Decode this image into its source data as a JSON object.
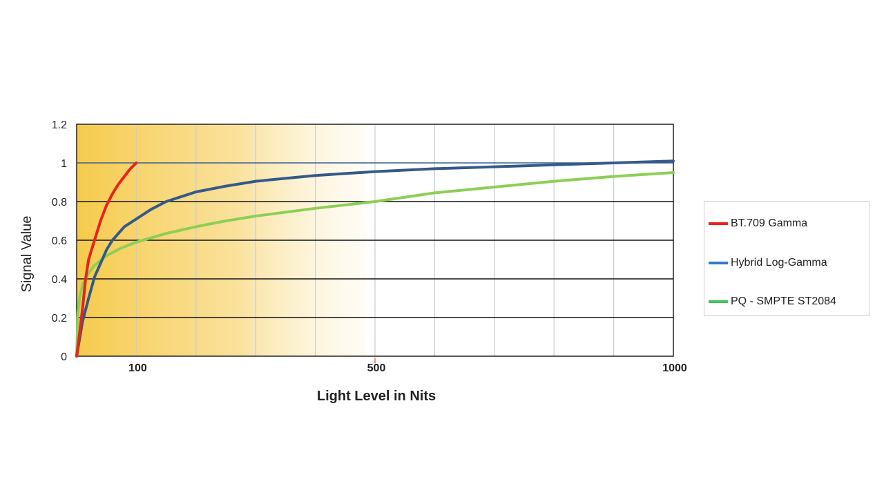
{
  "chart_data": {
    "type": "line",
    "xlabel": "Light Level in Nits",
    "ylabel": "Signal Value",
    "xlim": [
      0,
      1000
    ],
    "ylim": [
      0,
      1.2
    ],
    "x_ticks": [
      100,
      500,
      1000
    ],
    "y_ticks": [
      0,
      0.2,
      0.4,
      0.6,
      0.8,
      1,
      1.2
    ],
    "y_tick_labels": [
      "0",
      "0.2",
      "0.4",
      "0.6",
      "0.8",
      "1",
      "1.2"
    ],
    "grid": true,
    "legend_position": "right",
    "highlight_region": {
      "from": 0,
      "to": 485,
      "color": "#f5c842"
    },
    "series": [
      {
        "name": "BT.709 Gamma",
        "color": "#e8231c",
        "x": [
          0,
          5,
          10,
          15,
          20,
          30,
          40,
          50,
          60,
          70,
          80,
          90,
          100
        ],
        "y": [
          0,
          0.12,
          0.25,
          0.4,
          0.5,
          0.6,
          0.7,
          0.78,
          0.84,
          0.89,
          0.93,
          0.97,
          1.0
        ]
      },
      {
        "name": "Hybrid Log-Gamma",
        "color": "#34598a",
        "x": [
          0,
          10,
          20,
          30,
          40,
          50,
          60,
          80,
          100,
          125,
          150,
          200,
          250,
          300,
          350,
          400,
          450,
          500,
          600,
          700,
          800,
          900,
          1000
        ],
        "y": [
          0,
          0.18,
          0.3,
          0.41,
          0.48,
          0.55,
          0.6,
          0.67,
          0.71,
          0.76,
          0.8,
          0.85,
          0.88,
          0.905,
          0.92,
          0.935,
          0.945,
          0.955,
          0.97,
          0.98,
          0.99,
          1.0,
          1.01
        ]
      },
      {
        "name": "PQ - SMPTE ST2084",
        "color": "#8ccf55",
        "x": [
          0,
          2,
          5,
          10,
          20,
          30,
          50,
          75,
          100,
          150,
          200,
          250,
          300,
          400,
          500,
          600,
          700,
          800,
          900,
          1000
        ],
        "y": [
          0,
          0.22,
          0.3,
          0.37,
          0.43,
          0.47,
          0.52,
          0.56,
          0.59,
          0.635,
          0.67,
          0.7,
          0.725,
          0.765,
          0.8,
          0.845,
          0.875,
          0.905,
          0.93,
          0.95
        ]
      }
    ]
  }
}
